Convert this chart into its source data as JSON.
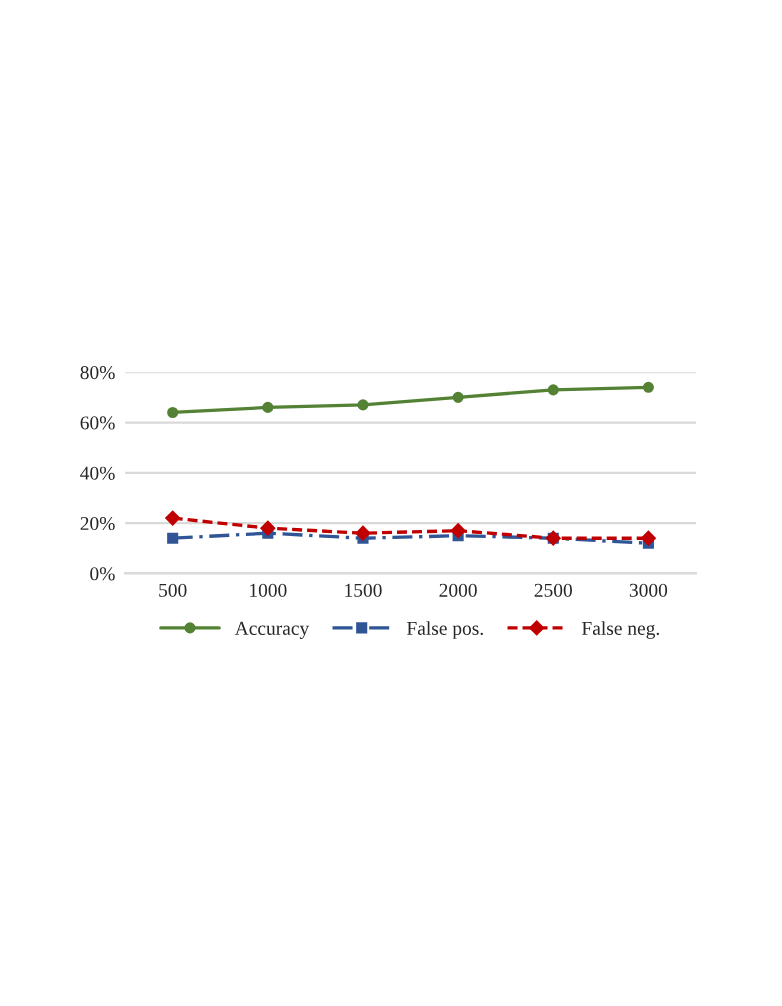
{
  "chart_data": {
    "type": "line",
    "categories": [
      "500",
      "1000",
      "1500",
      "2000",
      "2500",
      "3000"
    ],
    "ylim": [
      0,
      0.8
    ],
    "yticks": [
      {
        "value": 0,
        "label": "0%"
      },
      {
        "value": 0.2,
        "label": "20%"
      },
      {
        "value": 0.4,
        "label": "40%"
      },
      {
        "value": 0.6,
        "label": "60%"
      },
      {
        "value": 0.8,
        "label": "80%"
      }
    ],
    "grid": "y",
    "legend": "bottom",
    "series": [
      {
        "name": "Accuracy",
        "color": "#548235",
        "values": [
          0.64,
          0.66,
          0.67,
          0.7,
          0.73,
          0.74
        ],
        "marker": "circle",
        "line_style": "solid"
      },
      {
        "name": "False pos.",
        "color": "#2f5597",
        "values": [
          0.14,
          0.16,
          0.14,
          0.15,
          0.14,
          0.12
        ],
        "marker": "square",
        "line_style": "dashed"
      },
      {
        "name": "False neg.",
        "color": "#c00000",
        "values": [
          0.22,
          0.18,
          0.16,
          0.17,
          0.14,
          0.14
        ],
        "marker": "diamond",
        "line_style": "dotted"
      }
    ]
  }
}
